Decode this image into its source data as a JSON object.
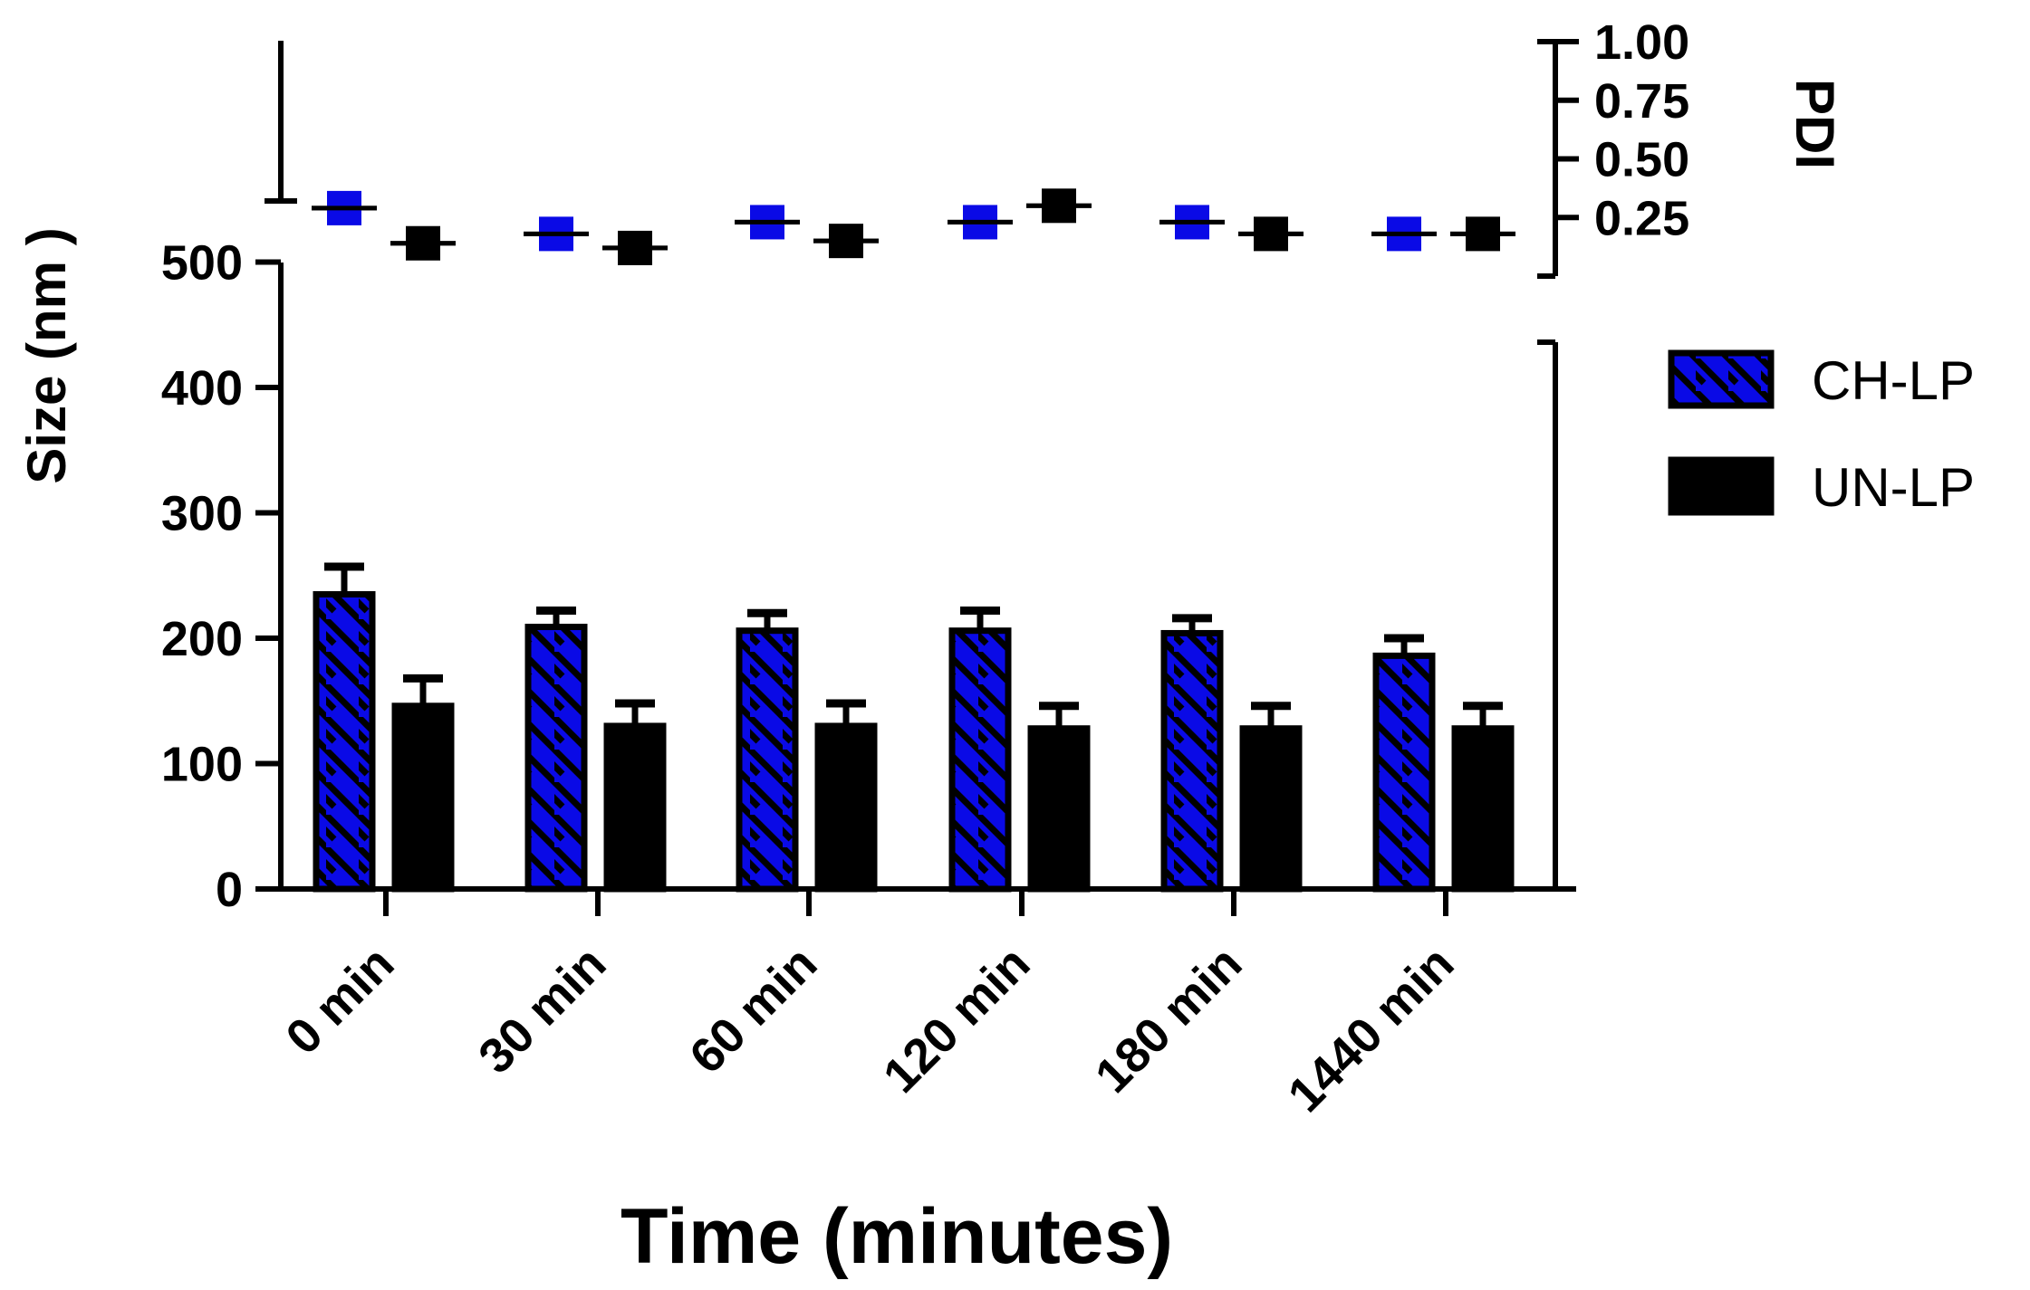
{
  "chart_data": {
    "type": "bar",
    "xlabel": "Time (minutes)",
    "ylabel": "Size (nm )",
    "y2label": "PDI",
    "categories": [
      "0 min",
      "30 min",
      "60 min",
      "120 min",
      "180 min",
      "1440 min"
    ],
    "ylim": [
      0,
      600
    ],
    "y_ticks": [
      "0",
      "100",
      "200",
      "300",
      "400",
      "500"
    ],
    "y2lim": [
      0,
      1.0
    ],
    "y2_ticks": [
      "0.25",
      "0.50",
      "0.75",
      "1.00"
    ],
    "grid": false,
    "legend_position": "right",
    "series": [
      {
        "name": "CH-LP",
        "color": "#0a0ae6",
        "pattern": "diagonal-hatch",
        "values": [
          235,
          209,
          206,
          206,
          204,
          186
        ],
        "errors": [
          22,
          13,
          14,
          16,
          12,
          14
        ],
        "pdi": [
          0.29,
          0.18,
          0.23,
          0.23,
          0.23,
          0.18
        ],
        "pdi_errors": [
          0.05,
          0.05,
          0.05,
          0.05,
          0.05,
          0.05
        ]
      },
      {
        "name": "UN-LP",
        "color": "#000000",
        "pattern": "solid",
        "values": [
          146,
          130,
          130,
          128,
          128,
          128
        ],
        "errors": [
          22,
          18,
          18,
          18,
          18,
          18
        ],
        "pdi": [
          0.14,
          0.12,
          0.15,
          0.3,
          0.18,
          0.18
        ],
        "pdi_errors": [
          0.05,
          0.05,
          0.05,
          0.05,
          0.05,
          0.05
        ]
      }
    ]
  }
}
